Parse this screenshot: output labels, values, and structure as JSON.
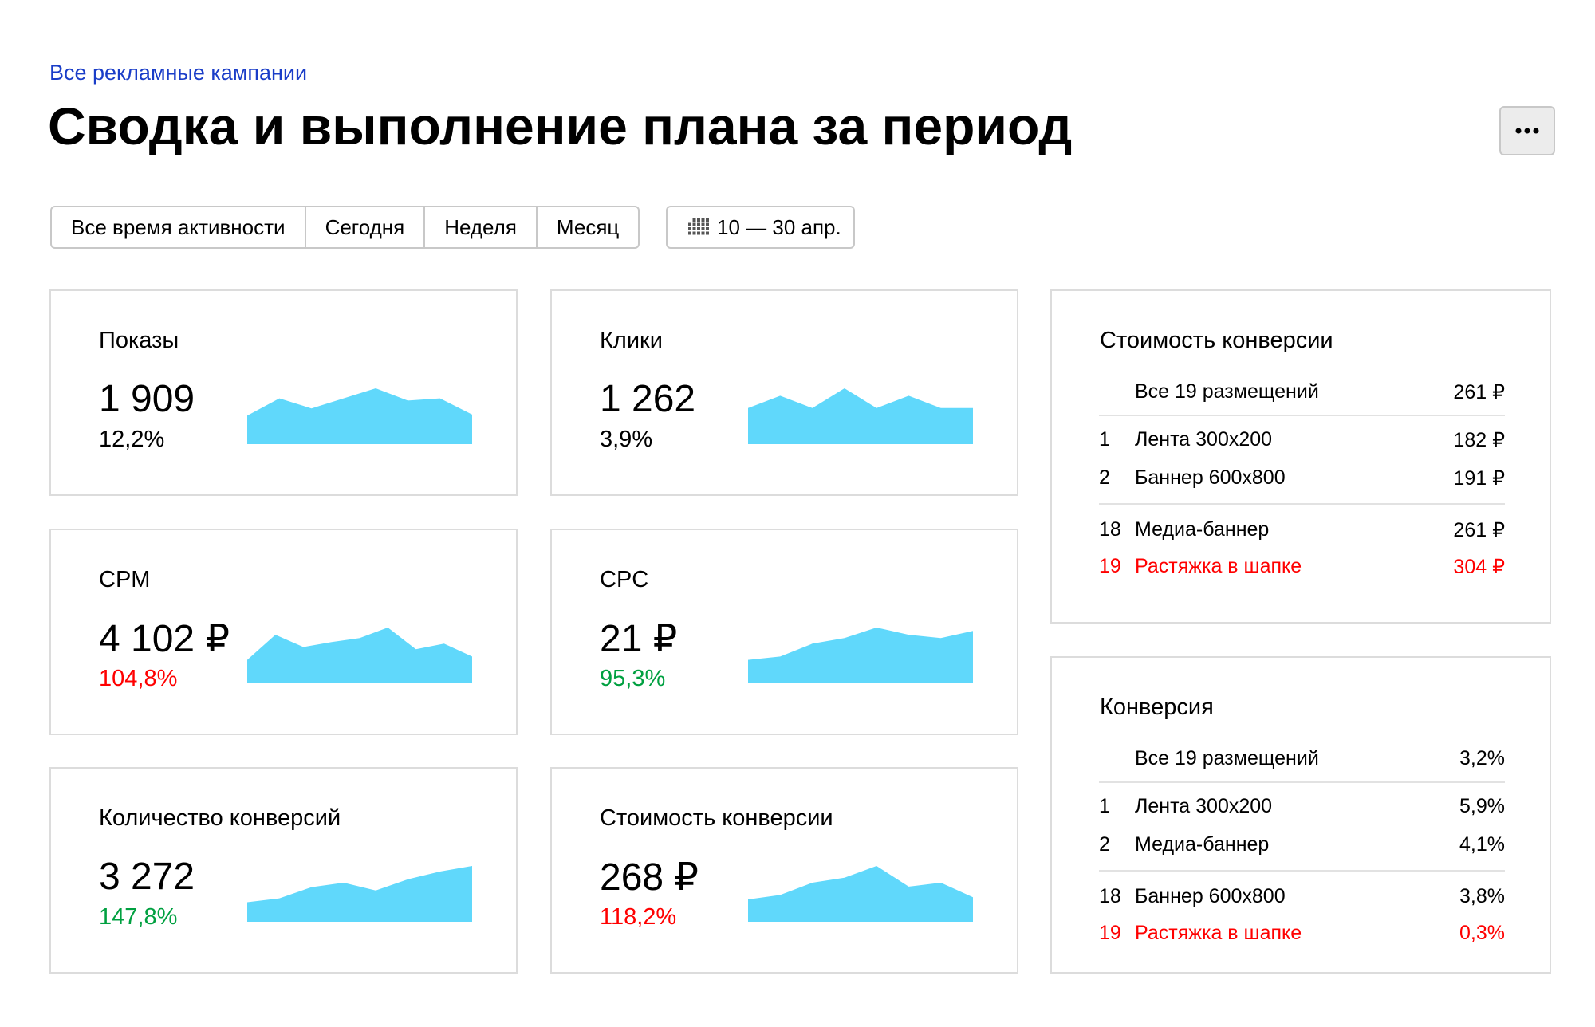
{
  "breadcrumb": "Все рекламные кампании",
  "title": "Сводка и выполнение плана за период",
  "periods": [
    "Все время активности",
    "Сегодня",
    "Неделя",
    "Месяц"
  ],
  "date_range": "10 — 30 апр.",
  "cards": [
    {
      "label": "Показы",
      "value": "1 909",
      "change": "12,2%",
      "change_color": "#000000",
      "spark": [
        51,
        82,
        64,
        82,
        100,
        78,
        82,
        53
      ]
    },
    {
      "label": "Клики",
      "value": "1 262",
      "change": "3,9%",
      "change_color": "#000000",
      "spark": [
        53,
        71,
        53,
        82,
        53,
        71,
        53,
        53
      ]
    },
    {
      "label": "CPM",
      "value": "4 102 ₽",
      "change": "104,8%",
      "change_color": "#ff0000",
      "spark": [
        42,
        87,
        65,
        74,
        81,
        100,
        61,
        71,
        48
      ]
    },
    {
      "label": "CPC",
      "value": "21 ₽",
      "change": "95,3%",
      "change_color": "#00a040",
      "spark": [
        42,
        48,
        71,
        81,
        100,
        87,
        81,
        94
      ]
    },
    {
      "label": "Количество конверсий",
      "value": "3 272",
      "change": "147,8%",
      "change_color": "#00a040",
      "spark": [
        35,
        42,
        62,
        70,
        56,
        76,
        90,
        100
      ]
    },
    {
      "label": "Стоимость конверсии",
      "value": "268 ₽",
      "change": "118,2%",
      "change_color": "#ff0000",
      "spark": [
        40,
        48,
        70,
        79,
        100,
        63,
        70,
        44
      ]
    }
  ],
  "spark_color": "#60d8fb",
  "tables": [
    {
      "title": "Стоимость конверсии",
      "total": {
        "name": "Все 19 размещений",
        "value": "261 ₽"
      },
      "top_rows": [
        {
          "rank": 1,
          "name": "Лента 300x200",
          "value": "182 ₽"
        },
        {
          "rank": 2,
          "name": "Баннер 600x800",
          "value": "191 ₽"
        }
      ],
      "bottom_rows": [
        {
          "rank": 18,
          "name": "Медиа-баннер",
          "value": "261 ₽"
        },
        {
          "rank": 19,
          "name": "Растяжка в шапке",
          "value": "304 ₽",
          "color": "#ff0000"
        }
      ]
    },
    {
      "title": "Конверсия",
      "total": {
        "name": "Все 19 размещений",
        "value": "3,2%"
      },
      "top_rows": [
        {
          "rank": 1,
          "name": "Лента 300x200",
          "value": "5,9%"
        },
        {
          "rank": 2,
          "name": "Медиа-баннер",
          "value": "4,1%"
        }
      ],
      "bottom_rows": [
        {
          "rank": 18,
          "name": "Баннер 600x800",
          "value": "3,8%"
        },
        {
          "rank": 19,
          "name": "Растяжка в шапке",
          "value": "0,3%",
          "color": "#ff0000"
        }
      ]
    }
  ]
}
